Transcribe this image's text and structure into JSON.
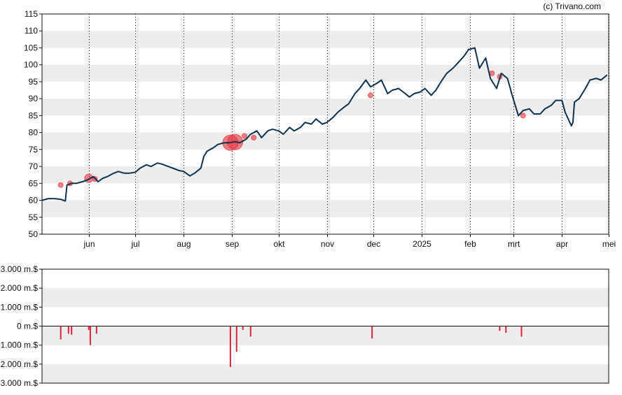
{
  "credit": "(c) Trivano.com",
  "colors": {
    "price_line": "#0d3350",
    "band": "#ededed",
    "bar": "#e0223a",
    "marker": "#e8333f",
    "axis": "#111111",
    "grid": "#000000"
  },
  "chart_data": [
    {
      "type": "line",
      "title": "",
      "ylim": [
        50,
        115
      ],
      "y_ticks": [
        115,
        110,
        105,
        100,
        95,
        90,
        85,
        80,
        75,
        70,
        65,
        60,
        55,
        50
      ],
      "y_tick_labels": [
        "115",
        "110",
        "105",
        "100",
        "95",
        "90",
        "85",
        "80",
        "75",
        "70",
        "65",
        "60",
        "55",
        "50"
      ],
      "x_ticks": [
        {
          "label": "jun",
          "date": "2024-06-01"
        },
        {
          "label": "jul",
          "date": "2024-07-01"
        },
        {
          "label": "aug",
          "date": "2024-08-01"
        },
        {
          "label": "sep",
          "date": "2024-09-01"
        },
        {
          "label": "okt",
          "date": "2024-10-01"
        },
        {
          "label": "nov",
          "date": "2024-11-01"
        },
        {
          "label": "dec",
          "date": "2024-12-01"
        },
        {
          "label": "2025",
          "date": "2025-01-01"
        },
        {
          "label": "feb",
          "date": "2025-02-01"
        },
        {
          "label": "mrt",
          "date": "2025-03-01"
        },
        {
          "label": "apr",
          "date": "2025-04-01"
        },
        {
          "label": "mei",
          "date": "2025-05-01"
        }
      ],
      "xlim": [
        "2024-05-02",
        "2025-05-01"
      ],
      "grid": "vertical dotted at month starts; alternating horizontal bands",
      "series": [
        {
          "x": [
            "2024-05-02",
            "2024-05-06",
            "2024-05-10",
            "2024-05-14",
            "2024-05-17",
            "2024-05-18",
            "2024-05-21",
            "2024-05-24",
            "2024-05-28",
            "2024-05-31",
            "2024-06-04",
            "2024-06-07",
            "2024-06-10",
            "2024-06-13",
            "2024-06-17",
            "2024-06-20",
            "2024-06-24",
            "2024-06-27",
            "2024-07-01",
            "2024-07-04",
            "2024-07-08",
            "2024-07-11",
            "2024-07-15",
            "2024-07-18",
            "2024-07-22",
            "2024-07-25",
            "2024-07-29",
            "2024-08-01",
            "2024-08-05",
            "2024-08-08",
            "2024-08-12",
            "2024-08-14",
            "2024-08-16",
            "2024-08-20",
            "2024-08-23",
            "2024-08-27",
            "2024-08-30",
            "2024-09-03",
            "2024-09-06",
            "2024-09-10",
            "2024-09-13",
            "2024-09-17",
            "2024-09-20",
            "2024-09-24",
            "2024-09-27",
            "2024-10-01",
            "2024-10-04",
            "2024-10-08",
            "2024-10-11",
            "2024-10-15",
            "2024-10-18",
            "2024-10-22",
            "2024-10-25",
            "2024-10-29",
            "2024-11-01",
            "2024-11-05",
            "2024-11-08",
            "2024-11-12",
            "2024-11-15",
            "2024-11-19",
            "2024-11-22",
            "2024-11-26",
            "2024-11-29",
            "2024-12-03",
            "2024-12-06",
            "2024-12-10",
            "2024-12-13",
            "2024-12-17",
            "2024-12-20",
            "2024-12-24",
            "2024-12-27",
            "2024-12-31",
            "2025-01-03",
            "2025-01-07",
            "2025-01-10",
            "2025-01-14",
            "2025-01-17",
            "2025-01-21",
            "2025-01-24",
            "2025-01-28",
            "2025-01-31",
            "2025-02-04",
            "2025-02-07",
            "2025-02-11",
            "2025-02-14",
            "2025-02-18",
            "2025-02-21",
            "2025-02-25",
            "2025-02-28",
            "2025-03-04",
            "2025-03-07",
            "2025-03-11",
            "2025-03-14",
            "2025-03-18",
            "2025-03-21",
            "2025-03-25",
            "2025-03-28",
            "2025-04-01",
            "2025-04-03",
            "2025-04-07",
            "2025-04-08",
            "2025-04-09",
            "2025-04-12",
            "2025-04-16",
            "2025-04-19",
            "2025-04-23",
            "2025-04-26",
            "2025-04-30"
          ],
          "y": [
            60,
            60.5,
            60.5,
            60.3,
            59.8,
            64.5,
            65,
            65,
            65.5,
            66,
            67,
            65.5,
            66.5,
            67,
            68,
            68.5,
            68,
            68,
            68.3,
            69.5,
            70.5,
            70,
            71,
            70.7,
            70,
            69.5,
            68.8,
            68.5,
            67.2,
            68,
            69.5,
            73,
            74.5,
            75.5,
            76.5,
            77,
            77,
            77.3,
            77,
            78,
            79.5,
            80.5,
            78.5,
            80.5,
            81,
            80.5,
            79.5,
            81.5,
            80.5,
            81.5,
            83,
            82.5,
            84,
            82.5,
            83,
            84.5,
            86,
            87.5,
            88.5,
            91.5,
            93,
            95.5,
            93.5,
            94.5,
            95.5,
            91.5,
            92.5,
            93,
            92,
            90.5,
            91.5,
            92,
            93,
            91,
            92.5,
            95.5,
            97.5,
            99,
            100.5,
            102.5,
            104.5,
            105,
            99,
            102,
            96,
            93,
            97.5,
            96,
            91,
            85,
            86.5,
            87,
            85.5,
            85.5,
            87,
            88,
            89.5,
            89.5,
            86,
            82,
            83,
            89,
            90,
            93,
            95.5,
            96,
            95.5,
            97
          ]
        }
      ],
      "markers": [
        {
          "date": "2024-05-14",
          "value": 64.5,
          "size": "small"
        },
        {
          "date": "2024-05-20",
          "value": 65,
          "size": "small"
        },
        {
          "date": "2024-06-01",
          "value": 66.5,
          "size": "medium"
        },
        {
          "date": "2024-06-05",
          "value": 66.3,
          "size": "small"
        },
        {
          "date": "2024-08-31",
          "value": 77,
          "size": "large"
        },
        {
          "date": "2024-09-03",
          "value": 77.2,
          "size": "large"
        },
        {
          "date": "2024-09-09",
          "value": 79,
          "size": "small"
        },
        {
          "date": "2024-09-15",
          "value": 78.5,
          "size": "small"
        },
        {
          "date": "2024-11-29",
          "value": 91,
          "size": "small"
        },
        {
          "date": "2025-02-15",
          "value": 97.5,
          "size": "small"
        },
        {
          "date": "2025-02-20",
          "value": 96.5,
          "size": "small"
        },
        {
          "date": "2025-03-07",
          "value": 85,
          "size": "small"
        }
      ]
    },
    {
      "type": "bar",
      "title": "",
      "ylim": [
        -3000,
        3000
      ],
      "y_ticks": [
        3000,
        2000,
        1000,
        0,
        -1000,
        -2000,
        -3000
      ],
      "y_tick_labels": [
        "3.000 m.$",
        "2.000 m.$",
        "1.000 m.$",
        "0 m.$",
        "-1.000 m.$",
        "-2.000 m.$",
        "-3.000 m.$"
      ],
      "grid": "alternating horizontal bands",
      "bars": [
        {
          "date": "2024-05-14",
          "value": -700
        },
        {
          "date": "2024-05-19",
          "value": -400
        },
        {
          "date": "2024-05-21",
          "value": -450
        },
        {
          "date": "2024-06-01",
          "value": -200
        },
        {
          "date": "2024-06-02",
          "value": -1000
        },
        {
          "date": "2024-06-06",
          "value": -400
        },
        {
          "date": "2024-08-31",
          "value": -2150
        },
        {
          "date": "2024-09-04",
          "value": -1350
        },
        {
          "date": "2024-09-08",
          "value": -200
        },
        {
          "date": "2024-09-13",
          "value": -550
        },
        {
          "date": "2024-11-30",
          "value": -650
        },
        {
          "date": "2025-02-20",
          "value": -250
        },
        {
          "date": "2025-02-24",
          "value": -350
        },
        {
          "date": "2025-03-06",
          "value": -550
        }
      ]
    }
  ]
}
